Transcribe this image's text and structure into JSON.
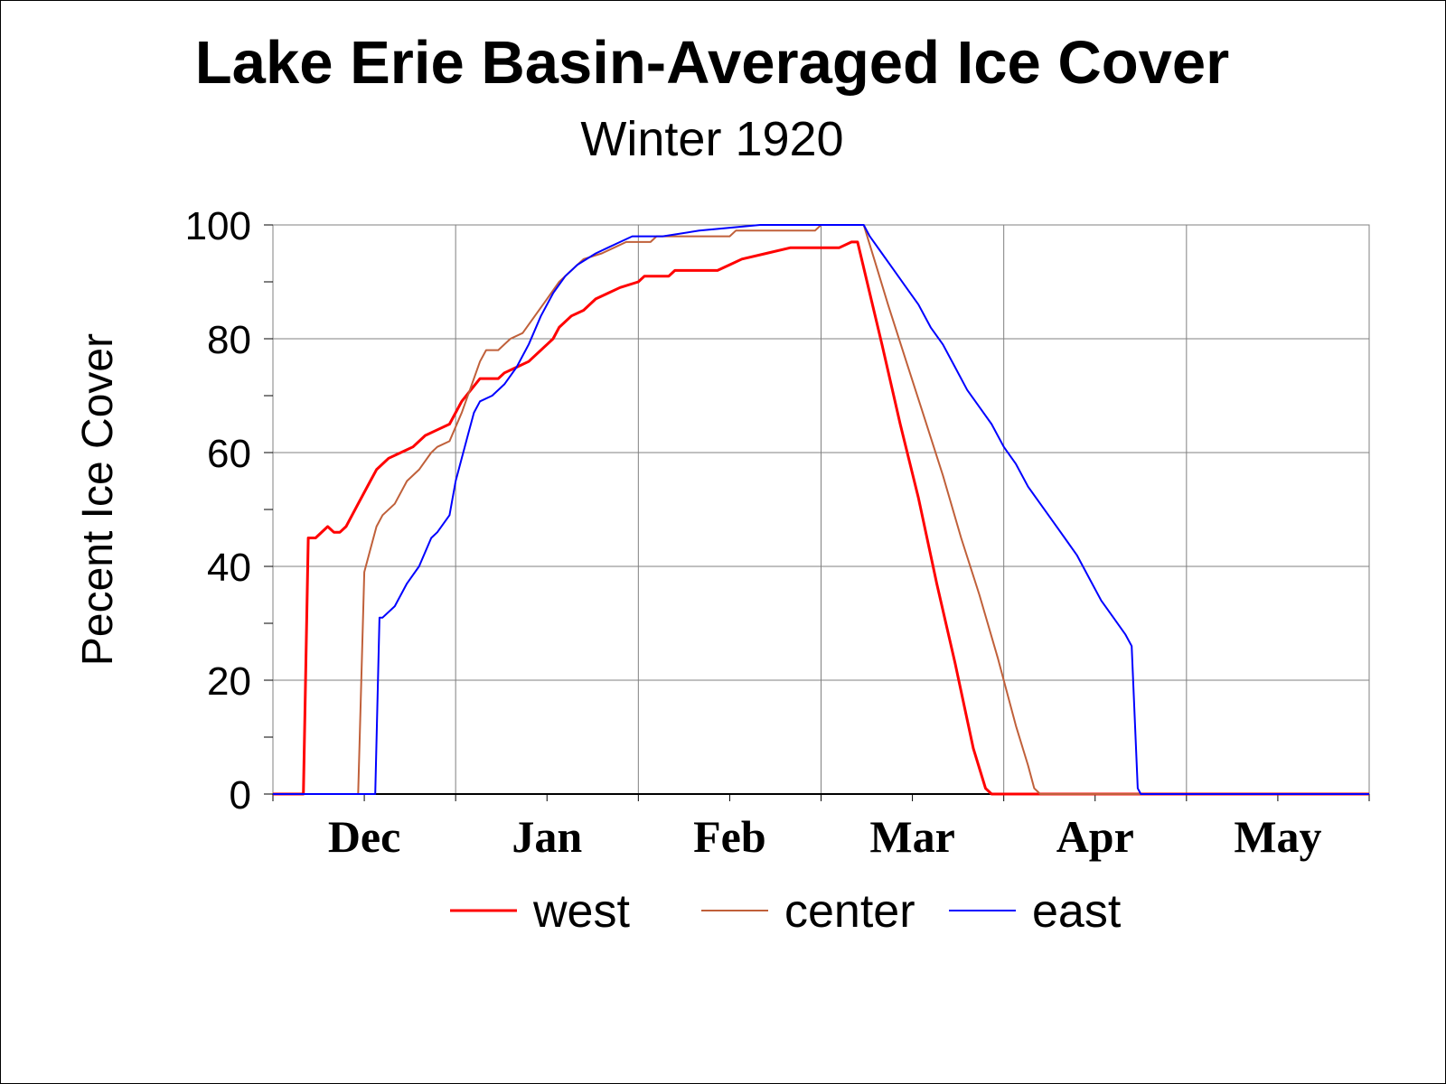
{
  "chart_data": {
    "type": "line",
    "title": "Lake Erie Basin-Averaged Ice Cover",
    "subtitle": "Winter 1920",
    "ylabel": "Pecent Ice Cover",
    "xlabel": "",
    "x_unit": "days since Nov 1",
    "xlim": [
      0,
      180
    ],
    "ylim": [
      0,
      100
    ],
    "yticks": [
      0,
      20,
      40,
      60,
      80,
      100
    ],
    "xtick_labels": [
      {
        "label": "Dec",
        "day": 15
      },
      {
        "label": "Jan",
        "day": 45
      },
      {
        "label": "Feb",
        "day": 75
      },
      {
        "label": "Mar",
        "day": 105
      },
      {
        "label": "Apr",
        "day": 135
      },
      {
        "label": "May",
        "day": 165
      }
    ],
    "grid": true,
    "legend_position": "bottom",
    "series": [
      {
        "name": "west",
        "color": "#ff0000",
        "stroke_width": 3,
        "points": [
          [
            0,
            0
          ],
          [
            5,
            0
          ],
          [
            5.8,
            45
          ],
          [
            7,
            45
          ],
          [
            9,
            47
          ],
          [
            10,
            46
          ],
          [
            11,
            46
          ],
          [
            12,
            47
          ],
          [
            14,
            51
          ],
          [
            16,
            55
          ],
          [
            17,
            57
          ],
          [
            19,
            59
          ],
          [
            21,
            60
          ],
          [
            23,
            61
          ],
          [
            25,
            63
          ],
          [
            27,
            64
          ],
          [
            29,
            65
          ],
          [
            31,
            69
          ],
          [
            34,
            73
          ],
          [
            37,
            73
          ],
          [
            38,
            74
          ],
          [
            40,
            75
          ],
          [
            42,
            76
          ],
          [
            45,
            79
          ],
          [
            46,
            80
          ],
          [
            47,
            82
          ],
          [
            49,
            84
          ],
          [
            51,
            85
          ],
          [
            53,
            87
          ],
          [
            55,
            88
          ],
          [
            57,
            89
          ],
          [
            60,
            90
          ],
          [
            61,
            91
          ],
          [
            65,
            91
          ],
          [
            66,
            92
          ],
          [
            73,
            92
          ],
          [
            75,
            93
          ],
          [
            77,
            94
          ],
          [
            81,
            95
          ],
          [
            85,
            96
          ],
          [
            93,
            96
          ],
          [
            95,
            97
          ],
          [
            96,
            97
          ],
          [
            98,
            88
          ],
          [
            100,
            79
          ],
          [
            103,
            65
          ],
          [
            106,
            52
          ],
          [
            109,
            37
          ],
          [
            112,
            23
          ],
          [
            115,
            8
          ],
          [
            117,
            1
          ],
          [
            118,
            0
          ],
          [
            180,
            0
          ]
        ]
      },
      {
        "name": "center",
        "color": "#c0603a",
        "stroke_width": 2,
        "points": [
          [
            0,
            0
          ],
          [
            14,
            0
          ],
          [
            15,
            39
          ],
          [
            16,
            43
          ],
          [
            17,
            47
          ],
          [
            18,
            49
          ],
          [
            20,
            51
          ],
          [
            22,
            55
          ],
          [
            24,
            57
          ],
          [
            26,
            60
          ],
          [
            27,
            61
          ],
          [
            29,
            62
          ],
          [
            31,
            67
          ],
          [
            33,
            73
          ],
          [
            34,
            76
          ],
          [
            35,
            78
          ],
          [
            37,
            78
          ],
          [
            39,
            80
          ],
          [
            41,
            81
          ],
          [
            43,
            84
          ],
          [
            45,
            87
          ],
          [
            47,
            90
          ],
          [
            49,
            92
          ],
          [
            51,
            94
          ],
          [
            54,
            95
          ],
          [
            56,
            96
          ],
          [
            58,
            97
          ],
          [
            62,
            97
          ],
          [
            63,
            98
          ],
          [
            75,
            98
          ],
          [
            76,
            99
          ],
          [
            89,
            99
          ],
          [
            90,
            100
          ],
          [
            97,
            100
          ],
          [
            99,
            93
          ],
          [
            101,
            86
          ],
          [
            104,
            76
          ],
          [
            107,
            66
          ],
          [
            110,
            56
          ],
          [
            113,
            45
          ],
          [
            116,
            35
          ],
          [
            119,
            24
          ],
          [
            122,
            12
          ],
          [
            124,
            5
          ],
          [
            125,
            1
          ],
          [
            126,
            0
          ],
          [
            180,
            0
          ]
        ]
      },
      {
        "name": "east",
        "color": "#0000ff",
        "stroke_width": 2,
        "points": [
          [
            0,
            0
          ],
          [
            16.8,
            0
          ],
          [
            17.5,
            31
          ],
          [
            18,
            31
          ],
          [
            20,
            33
          ],
          [
            22,
            37
          ],
          [
            24,
            40
          ],
          [
            26,
            45
          ],
          [
            27,
            46
          ],
          [
            29,
            49
          ],
          [
            30,
            55
          ],
          [
            32,
            63
          ],
          [
            33,
            67
          ],
          [
            34,
            69
          ],
          [
            36,
            70
          ],
          [
            38,
            72
          ],
          [
            40,
            75
          ],
          [
            42,
            79
          ],
          [
            44,
            84
          ],
          [
            46,
            88
          ],
          [
            48,
            91
          ],
          [
            50,
            93
          ],
          [
            53,
            95
          ],
          [
            55,
            96
          ],
          [
            57,
            97
          ],
          [
            59,
            98
          ],
          [
            64,
            98
          ],
          [
            70,
            99
          ],
          [
            80,
            100
          ],
          [
            97,
            100
          ],
          [
            98,
            98
          ],
          [
            100,
            95
          ],
          [
            102,
            92
          ],
          [
            104,
            89
          ],
          [
            106,
            86
          ],
          [
            108,
            82
          ],
          [
            110,
            79
          ],
          [
            112,
            75
          ],
          [
            114,
            71
          ],
          [
            116,
            68
          ],
          [
            118,
            65
          ],
          [
            120,
            61
          ],
          [
            122,
            58
          ],
          [
            124,
            54
          ],
          [
            126,
            51
          ],
          [
            128,
            48
          ],
          [
            130,
            45
          ],
          [
            132,
            42
          ],
          [
            134,
            38
          ],
          [
            136,
            34
          ],
          [
            138,
            31
          ],
          [
            140,
            28
          ],
          [
            141,
            26
          ],
          [
            142,
            1
          ],
          [
            142.5,
            0
          ],
          [
            180,
            0
          ]
        ]
      }
    ]
  }
}
